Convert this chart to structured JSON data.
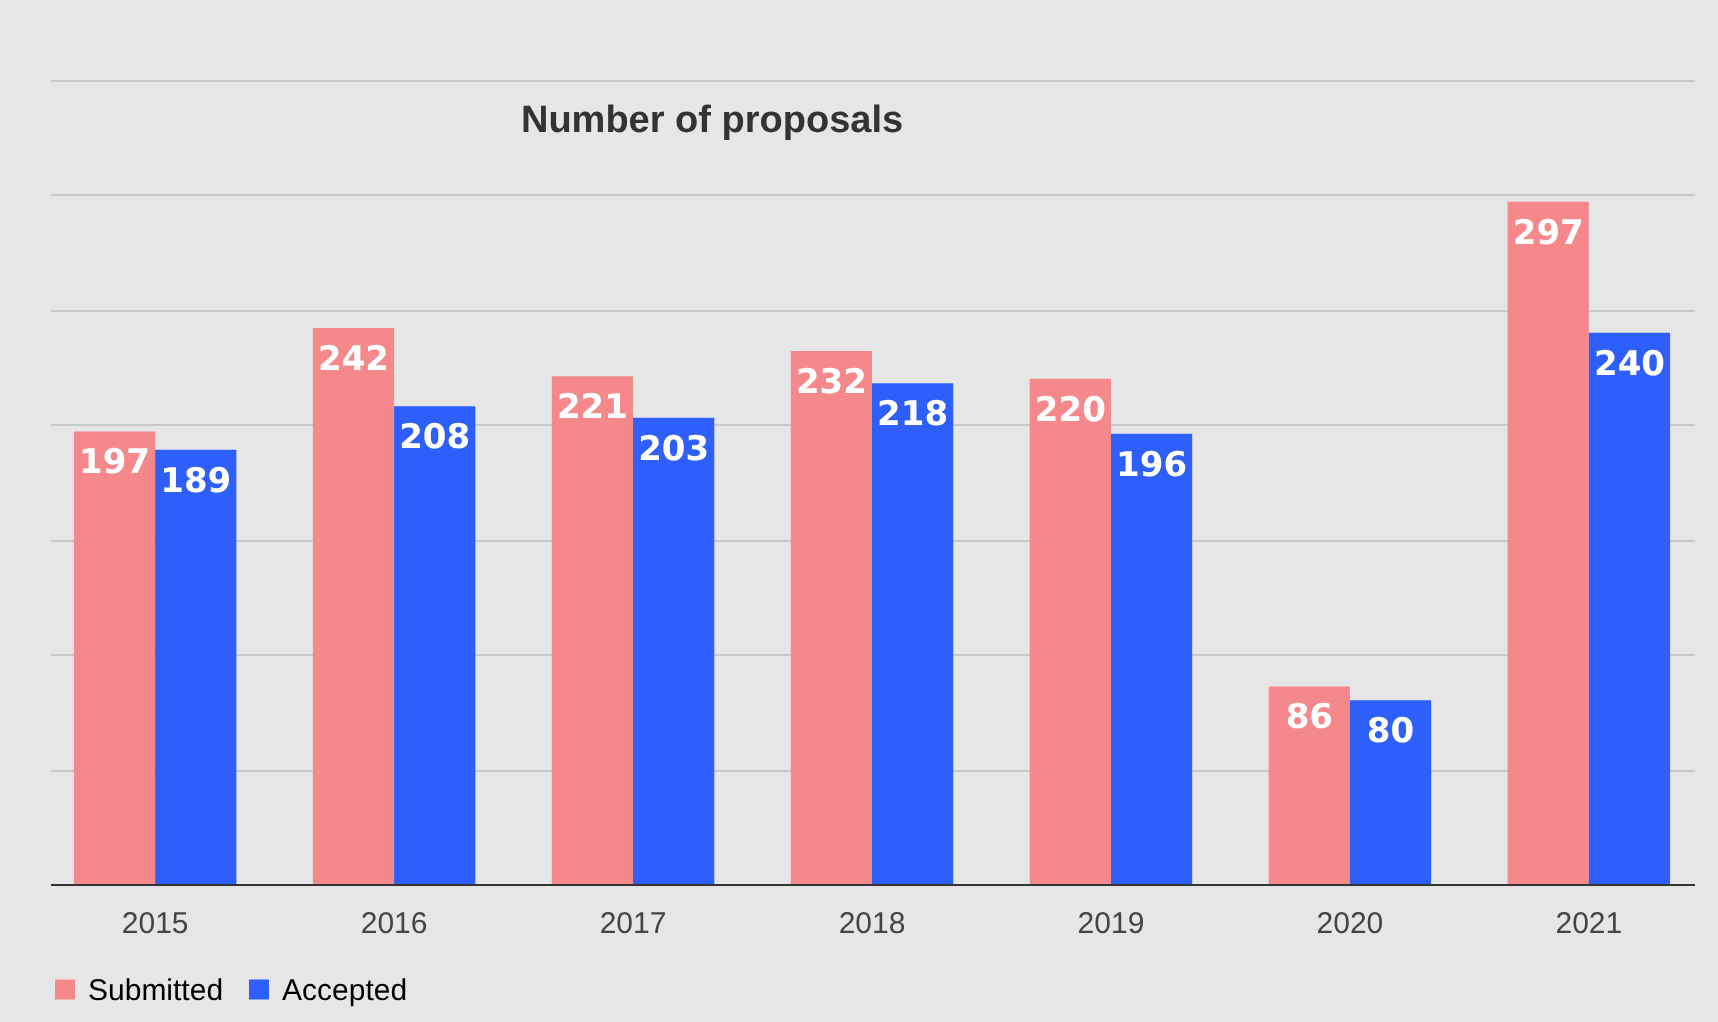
{
  "chart_data": {
    "type": "bar",
    "title": "Number of proposals",
    "categories": [
      "2015",
      "2016",
      "2017",
      "2018",
      "2019",
      "2020",
      "2021"
    ],
    "series": [
      {
        "name": "Submitted",
        "color": "#f4888b",
        "values": [
          197,
          242,
          221,
          232,
          220,
          86,
          297
        ]
      },
      {
        "name": "Accepted",
        "color": "#2f5ffb",
        "values": [
          189,
          208,
          203,
          218,
          196,
          80,
          240
        ]
      }
    ],
    "ylim": [
      0,
      350
    ],
    "yticks": [
      {
        "value": 0,
        "label": null
      },
      {
        "value": 50,
        "label": null
      },
      {
        "value": 100,
        "label": null
      },
      {
        "value": 150,
        "label": null
      },
      {
        "value": 200,
        "label": null
      },
      {
        "value": 250,
        "label": null
      },
      {
        "value": 300,
        "label": null
      },
      {
        "value": 350,
        "label": null
      }
    ],
    "tick_labels": "x",
    "grid": "y",
    "legend": "bottom",
    "data_labels": true
  }
}
